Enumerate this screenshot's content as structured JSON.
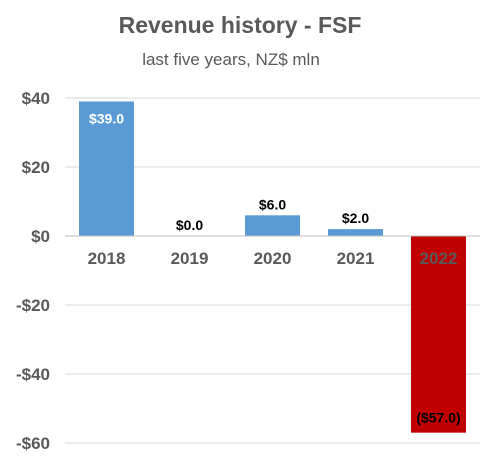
{
  "chart_data": {
    "type": "bar",
    "title": "Revenue history - FSF",
    "subtitle": "last five years, NZ$ mln",
    "categories": [
      "2018",
      "2019",
      "2020",
      "2021",
      "2022"
    ],
    "values": [
      39.0,
      0.0,
      6.0,
      2.0,
      -57.0
    ],
    "data_labels": [
      "$39.0",
      "$0.0",
      "$6.0",
      "$2.0",
      "($57.0)"
    ],
    "colors": [
      "#5b9bd5",
      "#5b9bd5",
      "#5b9bd5",
      "#5b9bd5",
      "#c00000"
    ],
    "label_colors": [
      "#ffffff",
      "#000000",
      "#000000",
      "#000000",
      "#000000"
    ],
    "xlabel": "",
    "ylabel": "",
    "ylim": [
      -60,
      40
    ],
    "yticks": [
      40,
      20,
      0,
      -20,
      -40,
      -60
    ],
    "ytick_labels": [
      "$40",
      "$20",
      "$0",
      "-$20",
      "-$40",
      "-$60"
    ],
    "grid": true,
    "legend": "none"
  }
}
